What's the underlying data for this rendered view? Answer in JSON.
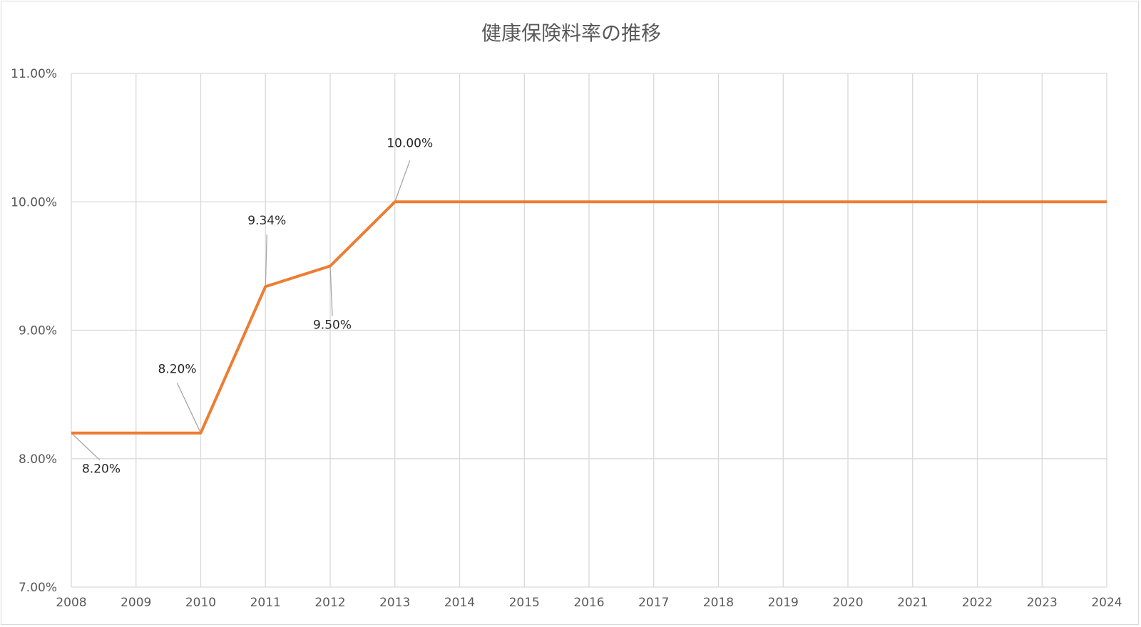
{
  "chart_data": {
    "type": "line",
    "title": "健康保険料率の推移",
    "xlabel": "",
    "ylabel": "",
    "x": [
      2008,
      2009,
      2010,
      2011,
      2012,
      2013,
      2014,
      2015,
      2016,
      2017,
      2018,
      2019,
      2020,
      2021,
      2022,
      2023,
      2024
    ],
    "x_tick_labels": [
      "2008",
      "2009",
      "2010",
      "2011",
      "2012",
      "2013",
      "2014",
      "2015",
      "2016",
      "2017",
      "2018",
      "2019",
      "2020",
      "2021",
      "2022",
      "2023",
      "2024"
    ],
    "ylim": [
      7.0,
      11.0
    ],
    "y_ticks": [
      7.0,
      8.0,
      9.0,
      10.0,
      11.0
    ],
    "y_tick_labels": [
      "7.00%",
      "8.00%",
      "9.00%",
      "10.00%",
      "11.00%"
    ],
    "grid": true,
    "legend": "none",
    "series": [
      {
        "color": "#ed7d31",
        "values": [
          8.2,
          8.2,
          8.2,
          9.34,
          9.5,
          10.0,
          10.0,
          10.0,
          10.0,
          10.0,
          10.0,
          10.0,
          10.0,
          10.0,
          10.0,
          10.0,
          10.0
        ]
      }
    ],
    "data_labels": [
      {
        "x": 2008,
        "value": 8.2,
        "text": "8.20%"
      },
      {
        "x": 2010,
        "value": 8.2,
        "text": "8.20%"
      },
      {
        "x": 2011,
        "value": 9.34,
        "text": "9.34%"
      },
      {
        "x": 2012,
        "value": 9.5,
        "text": "9.50%"
      },
      {
        "x": 2013,
        "value": 10.0,
        "text": "10.00%"
      }
    ]
  }
}
